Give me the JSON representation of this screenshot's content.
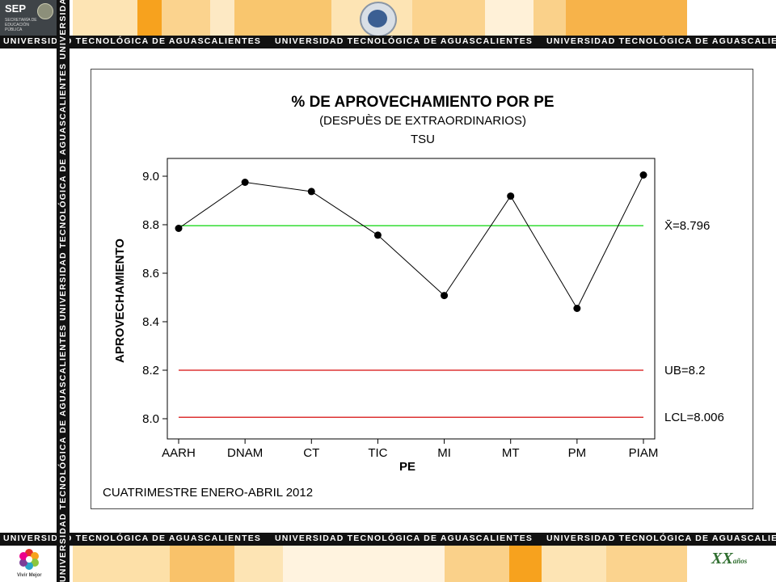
{
  "header": {
    "strip_text": "UNIVERSIDAD TECNOLÓGICA DE AGUASCALIENTES",
    "sep_logo": {
      "label": "SEP",
      "sublabel": "SECRETARÍA DE EDUCACIÓN PÚBLICA",
      "icon": "sep-emblem-icon"
    },
    "university_emblem": "ut-emblem-icon"
  },
  "footer": {
    "strip_text": "UNIVERSIDAD TECNOLÓGICA DE AGUASCALIENTES",
    "vivir_logo": {
      "label": "Vivir Mejor",
      "icon": "vivir-mejor-flower-icon"
    },
    "anniversary_logo": {
      "label": "XX",
      "suffix": "años",
      "icon": "ut-anniversary-icon"
    }
  },
  "side_strip_text": "UNIVERSIDAD TECNOLÓGICA DE AGUASCALIENTES",
  "colors": {
    "strip": "#111111",
    "mean_line": "#33dd33",
    "limit_line": "#dd3333",
    "series": "#000000",
    "band_orange": "#f7a21e",
    "band_light": "#fde4b4"
  },
  "chart_data": {
    "type": "line",
    "title": "% DE APROVECHAMIENTO POR PE",
    "subtitle": "(DESPUÈS DE EXTRAORDINARIOS)",
    "subtitle2": "TSU",
    "xlabel": "PE",
    "ylabel": "APROVECHAMIENTO",
    "categories": [
      "AARH",
      "DNAM",
      "CT",
      "TIC",
      "MI",
      "MT",
      "PM",
      "PIAM"
    ],
    "values": [
      8.785,
      8.975,
      8.937,
      8.757,
      8.508,
      8.918,
      8.455,
      9.005
    ],
    "ylim": [
      8.0,
      9.0
    ],
    "yticks": [
      "8.0",
      "8.2",
      "8.4",
      "8.6",
      "8.8",
      "9.0"
    ],
    "reference_lines": [
      {
        "label": "X̄=8.796",
        "value": 8.796,
        "color": "#33dd33"
      },
      {
        "label": "UB=8.2",
        "value": 8.2,
        "color": "#dd3333"
      },
      {
        "label": "LCL=8.006",
        "value": 8.006,
        "color": "#dd3333"
      }
    ],
    "footnote": "CUATRIMESTRE ENERO-ABRIL 2012",
    "grid": false,
    "legend": "none"
  }
}
